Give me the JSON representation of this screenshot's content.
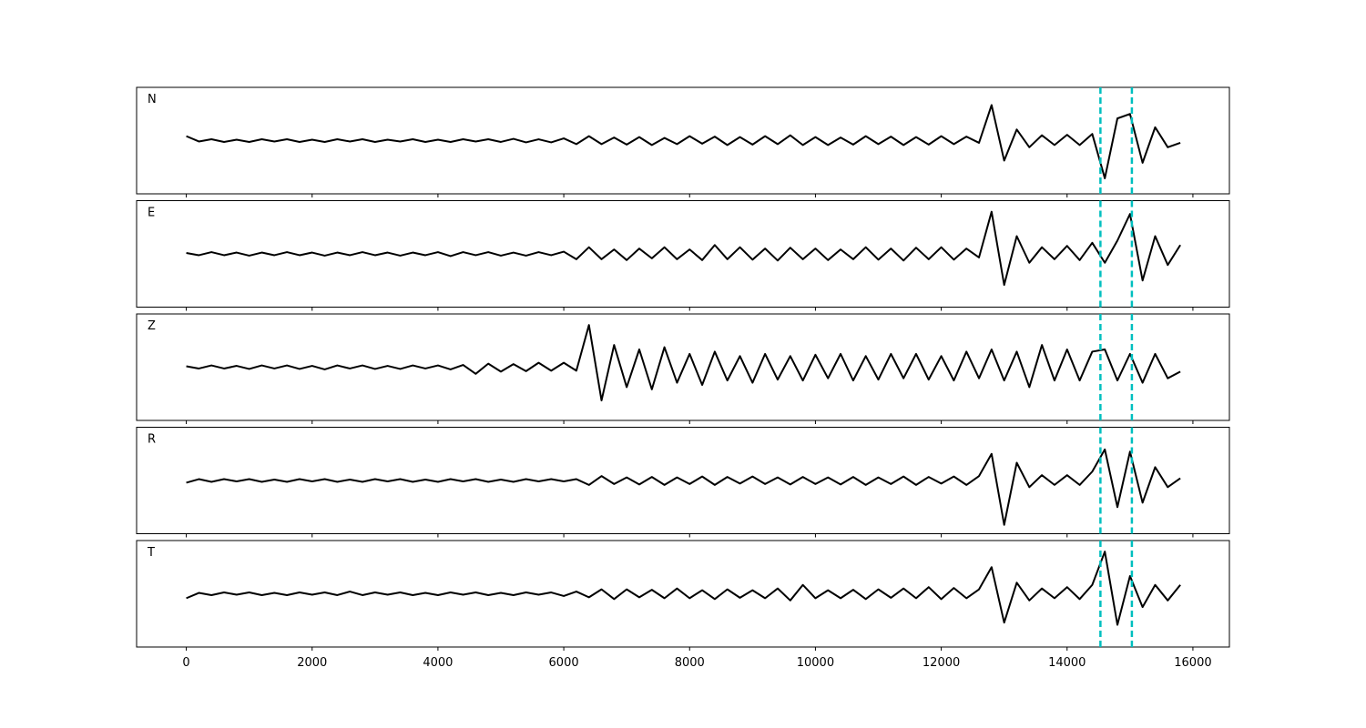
{
  "chart_data": {
    "type": "line",
    "subplots": true,
    "x": [
      0,
      200,
      400,
      600,
      800,
      1000,
      1200,
      1400,
      1600,
      1800,
      2000,
      2200,
      2400,
      2600,
      2800,
      3000,
      3200,
      3400,
      3600,
      3800,
      4000,
      4200,
      4400,
      4600,
      4800,
      5000,
      5200,
      5400,
      5600,
      5800,
      6000,
      6200,
      6400,
      6600,
      6800,
      7000,
      7200,
      7400,
      7600,
      7800,
      8000,
      8200,
      8400,
      8600,
      8800,
      9000,
      9200,
      9400,
      9600,
      9800,
      10000,
      10200,
      10400,
      10600,
      10800,
      11000,
      11200,
      11400,
      11600,
      11800,
      12000,
      12200,
      12400,
      12600,
      12800,
      13000,
      13200,
      13400,
      13600,
      13800,
      14000,
      14200,
      14400,
      14600,
      14800,
      15000,
      15200,
      15400,
      15600,
      15800
    ],
    "xlim": [
      -790,
      16580
    ],
    "xticks": [
      0,
      2000,
      4000,
      6000,
      8000,
      10000,
      12000,
      14000,
      16000
    ],
    "ylim": [
      -1.2,
      1.2
    ],
    "markers": [
      14530,
      15030
    ],
    "marker_color": "#00bfbf",
    "series": [
      {
        "name": "N",
        "color": "#000000",
        "values": [
          0.1,
          -0.02,
          0.03,
          -0.03,
          0.02,
          -0.03,
          0.03,
          -0.02,
          0.03,
          -0.03,
          0.02,
          -0.03,
          0.03,
          -0.02,
          0.03,
          -0.03,
          0.02,
          -0.02,
          0.03,
          -0.03,
          0.02,
          -0.03,
          0.03,
          -0.02,
          0.03,
          -0.03,
          0.04,
          -0.04,
          0.03,
          -0.04,
          0.05,
          -0.08,
          0.1,
          -0.08,
          0.07,
          -0.09,
          0.08,
          -0.1,
          0.06,
          -0.08,
          0.1,
          -0.07,
          0.09,
          -0.1,
          0.08,
          -0.09,
          0.1,
          -0.08,
          0.12,
          -0.1,
          0.08,
          -0.1,
          0.07,
          -0.09,
          0.1,
          -0.08,
          0.09,
          -0.1,
          0.08,
          -0.09,
          0.1,
          -0.08,
          0.09,
          -0.05,
          0.8,
          -0.45,
          0.25,
          -0.15,
          0.12,
          -0.1,
          0.13,
          -0.1,
          0.15,
          -0.85,
          0.5,
          0.6,
          -0.5,
          0.3,
          -0.15,
          -0.05
        ]
      },
      {
        "name": "E",
        "color": "#000000",
        "values": [
          0.02,
          -0.03,
          0.04,
          -0.03,
          0.03,
          -0.04,
          0.03,
          -0.03,
          0.04,
          -0.03,
          0.03,
          -0.04,
          0.03,
          -0.03,
          0.04,
          -0.03,
          0.03,
          -0.04,
          0.03,
          -0.03,
          0.04,
          -0.05,
          0.04,
          -0.03,
          0.04,
          -0.04,
          0.03,
          -0.04,
          0.04,
          -0.03,
          0.05,
          -0.12,
          0.15,
          -0.12,
          0.1,
          -0.14,
          0.12,
          -0.1,
          0.15,
          -0.12,
          0.1,
          -0.14,
          0.2,
          -0.12,
          0.15,
          -0.13,
          0.12,
          -0.15,
          0.14,
          -0.12,
          0.12,
          -0.14,
          0.1,
          -0.12,
          0.15,
          -0.13,
          0.12,
          -0.15,
          0.14,
          -0.12,
          0.15,
          -0.13,
          0.12,
          -0.08,
          0.95,
          -0.7,
          0.4,
          -0.2,
          0.15,
          -0.12,
          0.18,
          -0.14,
          0.25,
          -0.2,
          0.3,
          0.9,
          -0.6,
          0.4,
          -0.25,
          0.2
        ]
      },
      {
        "name": "Z",
        "color": "#000000",
        "values": [
          0.02,
          -0.03,
          0.04,
          -0.03,
          0.03,
          -0.04,
          0.04,
          -0.03,
          0.04,
          -0.04,
          0.03,
          -0.05,
          0.04,
          -0.03,
          0.04,
          -0.04,
          0.03,
          -0.04,
          0.04,
          -0.03,
          0.04,
          -0.05,
          0.05,
          -0.15,
          0.08,
          -0.1,
          0.07,
          -0.09,
          0.1,
          -0.08,
          0.1,
          -0.08,
          0.95,
          -0.75,
          0.5,
          -0.45,
          0.4,
          -0.5,
          0.45,
          -0.35,
          0.3,
          -0.4,
          0.35,
          -0.3,
          0.25,
          -0.35,
          0.3,
          -0.28,
          0.25,
          -0.3,
          0.28,
          -0.25,
          0.3,
          -0.3,
          0.25,
          -0.28,
          0.3,
          -0.25,
          0.3,
          -0.28,
          0.25,
          -0.3,
          0.35,
          -0.25,
          0.4,
          -0.3,
          0.35,
          -0.45,
          0.5,
          -0.3,
          0.4,
          -0.3,
          0.35,
          0.4,
          -0.3,
          0.3,
          -0.35,
          0.3,
          -0.25,
          -0.1
        ]
      },
      {
        "name": "R",
        "color": "#000000",
        "values": [
          -0.05,
          0.03,
          -0.03,
          0.03,
          -0.02,
          0.03,
          -0.03,
          0.02,
          -0.03,
          0.03,
          -0.02,
          0.03,
          -0.03,
          0.02,
          -0.03,
          0.03,
          -0.02,
          0.03,
          -0.03,
          0.02,
          -0.03,
          0.03,
          -0.02,
          0.03,
          -0.03,
          0.02,
          -0.03,
          0.03,
          -0.02,
          0.03,
          -0.02,
          0.03,
          -0.1,
          0.1,
          -0.08,
          0.07,
          -0.09,
          0.08,
          -0.1,
          0.07,
          -0.08,
          0.09,
          -0.1,
          0.08,
          -0.07,
          0.09,
          -0.08,
          0.07,
          -0.09,
          0.08,
          -0.08,
          0.07,
          -0.09,
          0.08,
          -0.1,
          0.07,
          -0.08,
          0.09,
          -0.1,
          0.08,
          -0.07,
          0.09,
          -0.1,
          0.1,
          0.6,
          -1.0,
          0.4,
          -0.15,
          0.12,
          -0.1,
          0.12,
          -0.1,
          0.2,
          0.7,
          -0.6,
          0.65,
          -0.5,
          0.3,
          -0.15,
          0.05
        ]
      },
      {
        "name": "T",
        "color": "#000000",
        "values": [
          -0.1,
          0.02,
          -0.03,
          0.03,
          -0.02,
          0.03,
          -0.03,
          0.02,
          -0.03,
          0.03,
          -0.02,
          0.03,
          -0.03,
          0.05,
          -0.03,
          0.03,
          -0.02,
          0.03,
          -0.03,
          0.02,
          -0.03,
          0.03,
          -0.02,
          0.03,
          -0.03,
          0.02,
          -0.03,
          0.03,
          -0.02,
          0.03,
          -0.05,
          0.05,
          -0.08,
          0.1,
          -0.12,
          0.1,
          -0.08,
          0.09,
          -0.1,
          0.12,
          -0.1,
          0.08,
          -0.12,
          0.1,
          -0.09,
          0.08,
          -0.1,
          0.12,
          -0.15,
          0.2,
          -0.1,
          0.08,
          -0.1,
          0.09,
          -0.12,
          0.1,
          -0.09,
          0.12,
          -0.1,
          0.15,
          -0.12,
          0.13,
          -0.1,
          0.1,
          0.6,
          -0.65,
          0.25,
          -0.15,
          0.12,
          -0.1,
          0.15,
          -0.12,
          0.2,
          0.95,
          -0.7,
          0.4,
          -0.3,
          0.2,
          -0.15,
          0.2
        ]
      }
    ]
  }
}
